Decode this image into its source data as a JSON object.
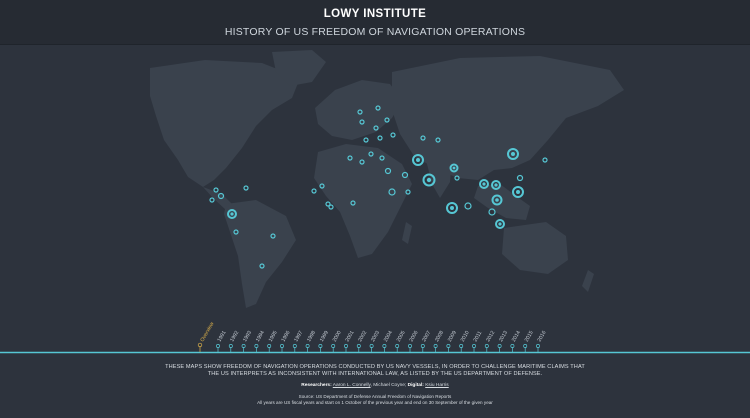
{
  "header": {
    "brand": "LOWY INSTITUTE",
    "title": "HISTORY OF US FREEDOM OF NAVIGATION OPERATIONS"
  },
  "timeline": {
    "overview_label": "Overview",
    "years": [
      "1991",
      "1992",
      "1993",
      "1994",
      "1995",
      "1996",
      "1997",
      "1998",
      "1999",
      "2000",
      "2001",
      "2002",
      "2003",
      "2004",
      "2005",
      "2006",
      "2007",
      "2008",
      "2009",
      "2010",
      "2011",
      "2012",
      "2013",
      "2014",
      "2015",
      "2016"
    ],
    "selected": "Overview"
  },
  "footer": {
    "description_line1": "THESE MAPS SHOW FREEDOM OF NAVIGATION OPERATIONS CONDUCTED BY US NAVY VESSELS, IN ORDER TO CHALLENGE MARITIME CLAIMS THAT",
    "description_line2": "THE US INTERPRETS AS INCONSISTENT WITH INTERNATIONAL LAW, AS LISTED BY THE US DEPARTMENT OF DEFENSE.",
    "researchers_label": "Researchers:",
    "researcher_1": "Aaron L. Connelly",
    "researcher_sep": ", Michael Coyne; ",
    "digital_label": "Digital:",
    "digital_name": "Ksiu Harris",
    "source": "Source: US Department of Defense Annual Freedom of Navigation Reports",
    "notes": "All years are US fiscal years and start on 1 October of the previous year and end on 30 September of the given year"
  },
  "colors": {
    "background": "#2d333d",
    "land": "#39414c",
    "accent": "#56c7d4",
    "selected": "#e0b44a"
  }
}
